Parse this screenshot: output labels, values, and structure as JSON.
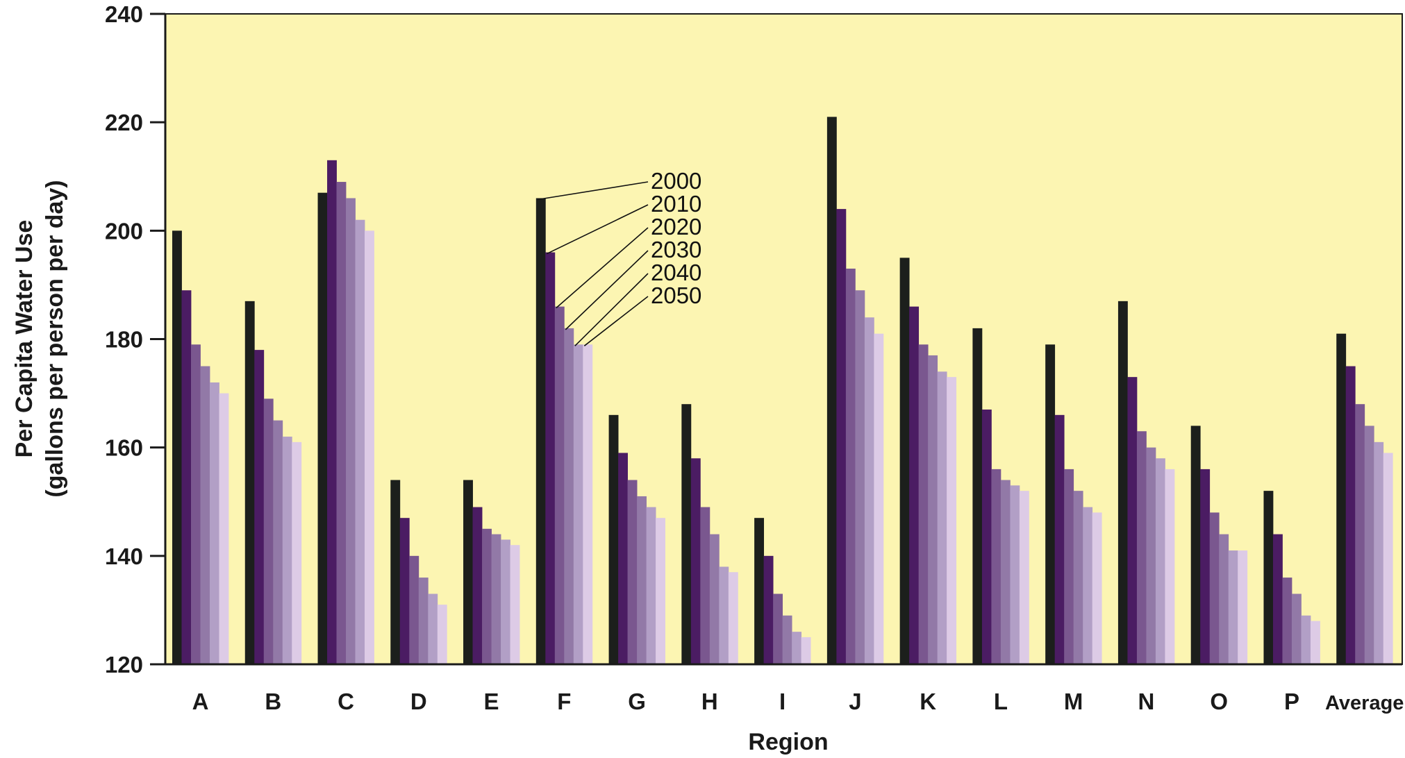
{
  "chart_data": {
    "type": "bar",
    "title": "",
    "xlabel": "Region",
    "ylabel": [
      "Per Capita Water Use",
      "(gallons per person per day)"
    ],
    "ylim": [
      120,
      240
    ],
    "yticks": [
      120,
      140,
      160,
      180,
      200,
      220,
      240
    ],
    "grid": false,
    "legend": "annotated on bars of region F",
    "background": "#fcf5b2",
    "categories": [
      "A",
      "B",
      "C",
      "D",
      "E",
      "F",
      "G",
      "H",
      "I",
      "J",
      "K",
      "L",
      "M",
      "N",
      "O",
      "P",
      "Average"
    ],
    "series": [
      {
        "name": "2000",
        "color": "#1c1f1c",
        "values": [
          200,
          187,
          207,
          154,
          154,
          206,
          166,
          168,
          147,
          221,
          195,
          182,
          179,
          187,
          164,
          152,
          181
        ]
      },
      {
        "name": "2010",
        "color": "#4b1c63",
        "values": [
          189,
          178,
          213,
          147,
          149,
          196,
          159,
          158,
          140,
          204,
          186,
          167,
          166,
          173,
          156,
          144,
          175
        ]
      },
      {
        "name": "2020",
        "color": "#7a578f",
        "values": [
          179,
          169,
          209,
          140,
          145,
          186,
          154,
          149,
          133,
          193,
          179,
          156,
          156,
          163,
          148,
          136,
          168
        ]
      },
      {
        "name": "2030",
        "color": "#9279a7",
        "values": [
          175,
          165,
          206,
          136,
          144,
          182,
          151,
          144,
          129,
          189,
          177,
          154,
          152,
          160,
          144,
          133,
          164
        ]
      },
      {
        "name": "2040",
        "color": "#b29fc6",
        "values": [
          172,
          162,
          202,
          133,
          143,
          179,
          149,
          138,
          126,
          184,
          174,
          153,
          149,
          158,
          141,
          129,
          161
        ]
      },
      {
        "name": "2050",
        "color": "#ddcbe6",
        "values": [
          170,
          161,
          200,
          131,
          142,
          179,
          147,
          137,
          125,
          181,
          173,
          152,
          148,
          156,
          141,
          128,
          159
        ]
      }
    ]
  }
}
